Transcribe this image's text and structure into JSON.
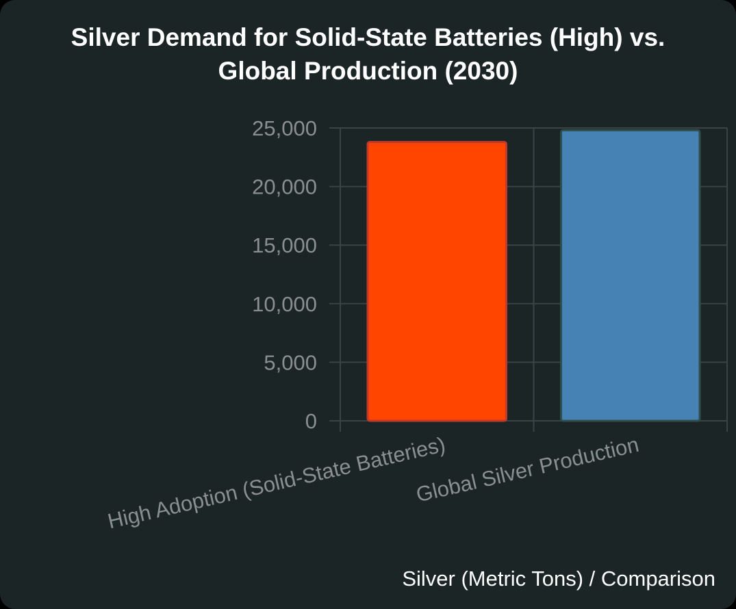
{
  "chart_data": {
    "type": "bar",
    "title_lines": [
      "Silver Demand for Solid-State Batteries (High) vs.",
      "Global Production (2030)"
    ],
    "categories": [
      "High Adoption (Solid-State Batteries)",
      "Global Silver Production"
    ],
    "values": [
      23800,
      24800
    ],
    "bar_colors": [
      "#ff4500",
      "#4682b4"
    ],
    "bar_border_colors": [
      "#c0392b",
      "#2f4f4f"
    ],
    "ylim": [
      0,
      25000
    ],
    "yticks": [
      0,
      5000,
      10000,
      15000,
      20000,
      25000
    ],
    "ytick_labels": [
      "0",
      "5,000",
      "10,000",
      "15,000",
      "20,000",
      "25,000"
    ],
    "grid": true,
    "legend": false,
    "caption": "Silver (Metric Tons) / Comparison"
  },
  "colors": {
    "background": "#1c2526",
    "grid": "#3a4445",
    "tick_text": "#8a8f8f",
    "title_text": "#ffffff"
  }
}
